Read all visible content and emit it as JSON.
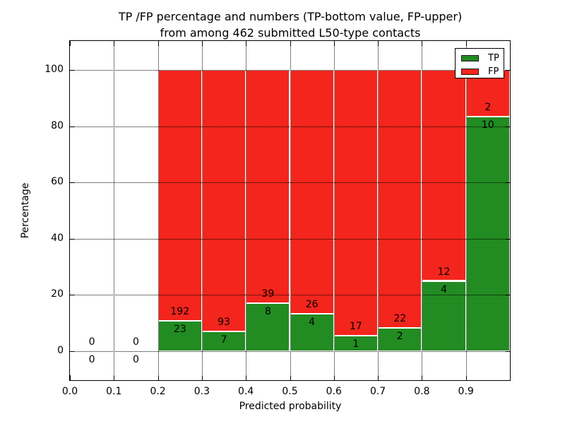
{
  "chart_data": {
    "type": "bar",
    "stacked": true,
    "orientation": "vertical",
    "title_lines": [
      "TP /FP percentage and numbers (TP-bottom value, FP-upper)",
      "from among 462 submitted L50-type contacts"
    ],
    "xlabel": "Predicted probability",
    "ylabel": "Percentage",
    "xlim": [
      0.0,
      1.0
    ],
    "ylim": [
      -10.3,
      110.3
    ],
    "yticks": [
      0,
      20,
      40,
      60,
      80,
      100
    ],
    "xtick_labels": [
      "0.0",
      "0.1",
      "0.2",
      "0.3",
      "0.4",
      "0.5",
      "0.6",
      "0.7",
      "0.8",
      "0.9"
    ],
    "grid": "dotted, both axes",
    "legend": {
      "position": "upper right",
      "entries": [
        {
          "label": "TP",
          "color": "#228b22"
        },
        {
          "label": "FP",
          "color": "#f3251c"
        }
      ]
    },
    "annotation_note": "each bar annotated with FP count above TP/FP boundary and TP count below it; bars are percentage-stacked to 100%",
    "bins": [
      {
        "range": [
          0.0,
          0.1
        ],
        "tp": 0,
        "fp": 0
      },
      {
        "range": [
          0.1,
          0.2
        ],
        "tp": 0,
        "fp": 0
      },
      {
        "range": [
          0.2,
          0.3
        ],
        "tp": 23,
        "fp": 192
      },
      {
        "range": [
          0.3,
          0.4
        ],
        "tp": 7,
        "fp": 93
      },
      {
        "range": [
          0.4,
          0.5
        ],
        "tp": 8,
        "fp": 39
      },
      {
        "range": [
          0.5,
          0.6
        ],
        "tp": 4,
        "fp": 26
      },
      {
        "range": [
          0.6,
          0.7
        ],
        "tp": 1,
        "fp": 17
      },
      {
        "range": [
          0.7,
          0.8
        ],
        "tp": 2,
        "fp": 22
      },
      {
        "range": [
          0.8,
          0.9
        ],
        "tp": 4,
        "fp": 12
      },
      {
        "range": [
          0.9,
          1.0
        ],
        "tp": 10,
        "fp": 2
      }
    ],
    "colors": {
      "tp": "#228b22",
      "fp": "#f3251c",
      "bar_edge": "#ffffff",
      "grid": "#000000",
      "background": "#ffffff"
    }
  }
}
